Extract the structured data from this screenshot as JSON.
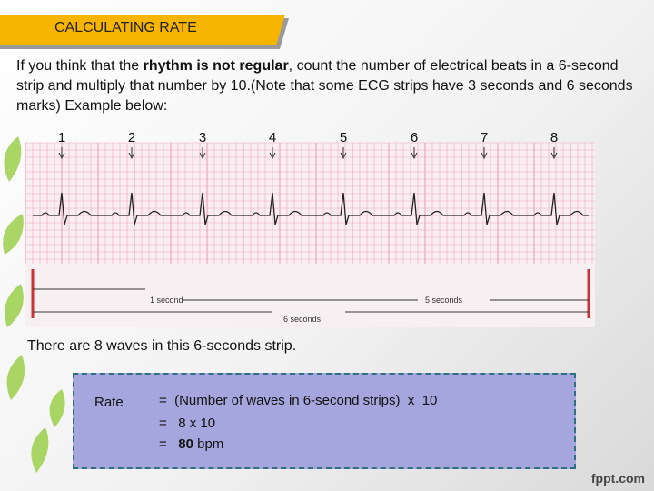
{
  "header": {
    "title": "CALCULATING RATE"
  },
  "intro": {
    "before": "If you think that the ",
    "emphasis": "rhythm is not regular",
    "after": ", count the number of electrical beats in a 6-second strip and multiply that number by 10.(Note that some ECG strips have 3 seconds and 6 seconds marks) Example below:"
  },
  "ecg_figure": {
    "beat_numbers": [
      1,
      2,
      3,
      4,
      5,
      6,
      7,
      8
    ],
    "marks": {
      "one_second": "1 second",
      "five_seconds": "5 seconds",
      "six_seconds": "6 seconds"
    }
  },
  "summary": "There are 8 waves in this 6-seconds strip.",
  "formula": {
    "label": "Rate",
    "lines": [
      {
        "text": "=  (Number of waves in 6-second strips)  x  10"
      },
      {
        "text": "=   8 x 10"
      },
      {
        "prefix": "=   ",
        "emphasis": "80",
        "suffix": " bpm"
      }
    ]
  },
  "footer": {
    "brand": "fppt.com"
  }
}
